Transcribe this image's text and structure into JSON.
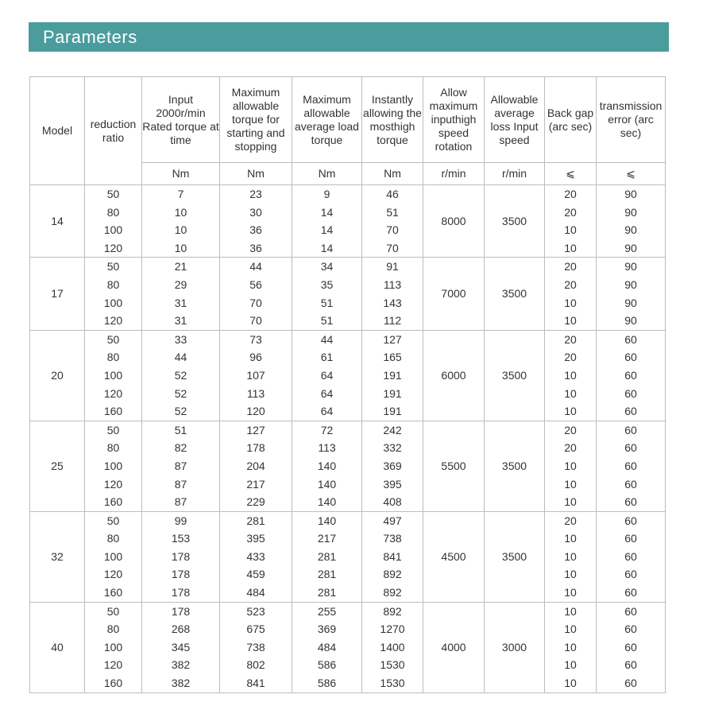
{
  "header": {
    "title": "Parameters"
  },
  "table": {
    "columns": [
      "Model",
      "reduction ratio",
      "Input 2000r/min Rated torque at time",
      "Maximum allowable torque for starting and stopping",
      "Maximum allowable average load torque",
      "Instantly allowing the mosthigh torque",
      "Allow maximum inputhigh speed rotation",
      "Allowable average loss Input speed",
      "Back gap (arc sec)",
      "transmission error (arc sec)"
    ],
    "units": [
      "Nm",
      "Nm",
      "Nm",
      "Nm",
      "r/min",
      "r/min",
      "⩽",
      "⩽"
    ],
    "groups": [
      {
        "model": 14,
        "max_input_speed": 8000,
        "average_input_speed": 3500,
        "rows": [
          [
            50,
            7,
            23,
            9,
            46,
            20,
            90
          ],
          [
            80,
            10,
            30,
            14,
            51,
            20,
            90
          ],
          [
            100,
            10,
            36,
            14,
            70,
            10,
            90
          ],
          [
            120,
            10,
            36,
            14,
            70,
            10,
            90
          ]
        ]
      },
      {
        "model": 17,
        "max_input_speed": 7000,
        "average_input_speed": 3500,
        "rows": [
          [
            50,
            21,
            44,
            34,
            91,
            20,
            90
          ],
          [
            80,
            29,
            56,
            35,
            113,
            20,
            90
          ],
          [
            100,
            31,
            70,
            51,
            143,
            10,
            90
          ],
          [
            120,
            31,
            70,
            51,
            112,
            10,
            90
          ]
        ]
      },
      {
        "model": 20,
        "max_input_speed": 6000,
        "average_input_speed": 3500,
        "rows": [
          [
            50,
            33,
            73,
            44,
            127,
            20,
            60
          ],
          [
            80,
            44,
            96,
            61,
            165,
            20,
            60
          ],
          [
            100,
            52,
            107,
            64,
            191,
            10,
            60
          ],
          [
            120,
            52,
            113,
            64,
            191,
            10,
            60
          ],
          [
            160,
            52,
            120,
            64,
            191,
            10,
            60
          ]
        ]
      },
      {
        "model": 25,
        "max_input_speed": 5500,
        "average_input_speed": 3500,
        "rows": [
          [
            50,
            51,
            127,
            72,
            242,
            20,
            60
          ],
          [
            80,
            82,
            178,
            113,
            332,
            20,
            60
          ],
          [
            100,
            87,
            204,
            140,
            369,
            10,
            60
          ],
          [
            120,
            87,
            217,
            140,
            395,
            10,
            60
          ],
          [
            160,
            87,
            229,
            140,
            408,
            10,
            60
          ]
        ]
      },
      {
        "model": 32,
        "max_input_speed": 4500,
        "average_input_speed": 3500,
        "rows": [
          [
            50,
            99,
            281,
            140,
            497,
            20,
            60
          ],
          [
            80,
            153,
            395,
            217,
            738,
            10,
            60
          ],
          [
            100,
            178,
            433,
            281,
            841,
            10,
            60
          ],
          [
            120,
            178,
            459,
            281,
            892,
            10,
            60
          ],
          [
            160,
            178,
            484,
            281,
            892,
            10,
            60
          ]
        ]
      },
      {
        "model": 40,
        "max_input_speed": 4000,
        "average_input_speed": 3000,
        "rows": [
          [
            50,
            178,
            523,
            255,
            892,
            10,
            60
          ],
          [
            80,
            268,
            675,
            369,
            1270,
            10,
            60
          ],
          [
            100,
            345,
            738,
            484,
            1400,
            10,
            60
          ],
          [
            120,
            382,
            802,
            586,
            1530,
            10,
            60
          ],
          [
            160,
            382,
            841,
            586,
            1530,
            10,
            60
          ]
        ]
      }
    ]
  }
}
